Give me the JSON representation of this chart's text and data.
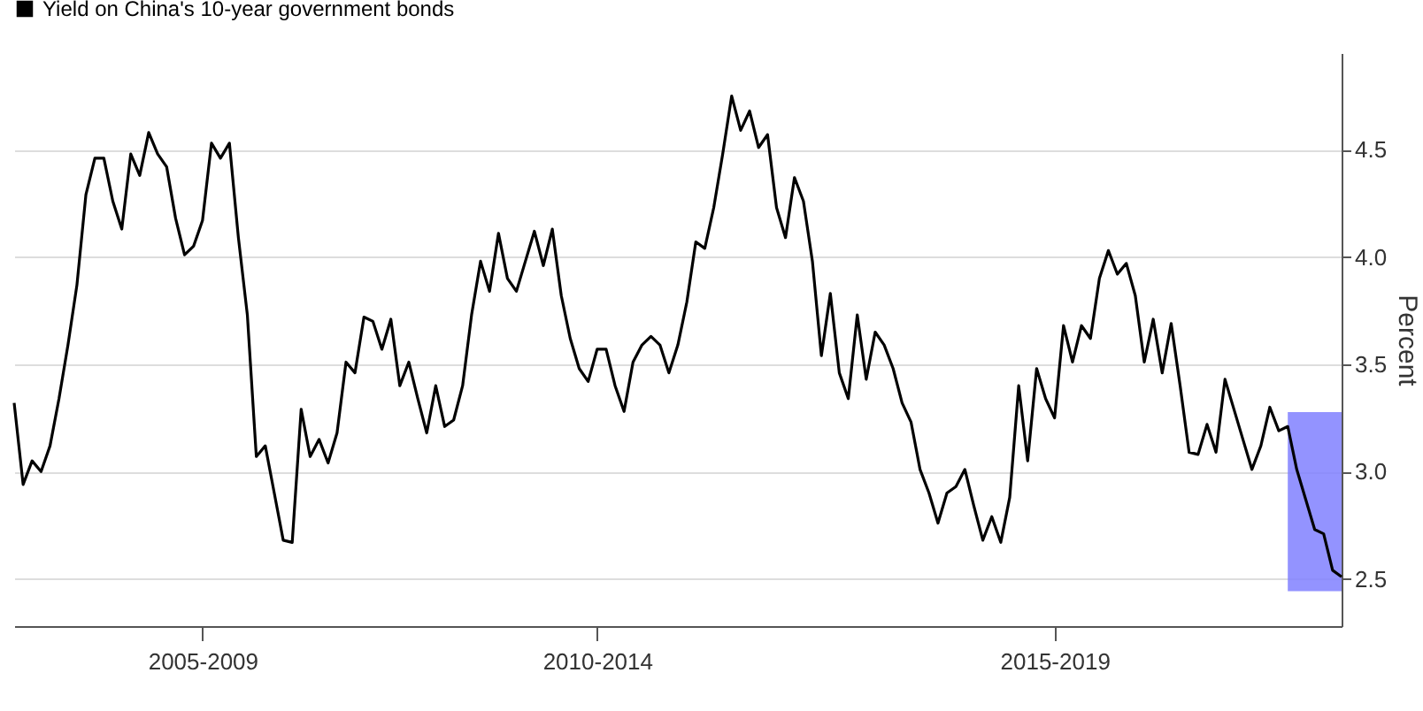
{
  "chart_data": {
    "type": "line",
    "ylabel": "Percent",
    "categories": [
      null,
      null,
      null,
      null,
      null,
      null,
      null,
      null,
      null,
      null,
      null,
      null,
      null,
      null,
      null,
      null,
      null,
      null,
      null,
      null,
      null,
      "2005-2009",
      null,
      null,
      null,
      null,
      null,
      null,
      null,
      null,
      null,
      null,
      null,
      null,
      null,
      null,
      null,
      null,
      null,
      null,
      null,
      null,
      null,
      null,
      null,
      null,
      null,
      null,
      null,
      null,
      null,
      null,
      null,
      null,
      null,
      null,
      null,
      null,
      null,
      null,
      null,
      null,
      null,
      null,
      null,
      "2010-2014",
      null,
      null,
      null,
      null,
      null,
      null,
      null,
      null,
      null,
      null,
      null,
      null,
      null,
      null,
      null,
      null,
      null,
      null,
      null,
      null,
      null,
      null,
      null,
      null,
      null,
      null,
      null,
      null,
      null,
      null,
      null,
      null,
      null,
      null,
      null,
      null,
      null,
      null,
      null,
      null,
      null,
      null,
      null,
      null,
      null,
      null,
      null,
      null,
      null,
      null,
      "2015-2019",
      null,
      null,
      null,
      null,
      null,
      null,
      null,
      null,
      null,
      null,
      null,
      null,
      null,
      null,
      null,
      null,
      null,
      null,
      null,
      null,
      null,
      null,
      null,
      null,
      null,
      null,
      null,
      null,
      null,
      null,
      null,
      null
    ],
    "ylim": [
      2.28,
      4.95
    ],
    "yticks": [
      2.5,
      {
        "value": 3,
        "label": "3.0"
      },
      3.5,
      {
        "value": 4,
        "label": "4.0"
      },
      4.5
    ],
    "grid": "y",
    "legend": "top left",
    "series": [
      {
        "name": "Yield on China's 10-year government bonds",
        "color": "#000000",
        "values": [
          3.32,
          2.94,
          3.05,
          3.0,
          3.12,
          3.34,
          3.59,
          3.87,
          4.29,
          4.46,
          4.46,
          4.26,
          4.13,
          4.48,
          4.38,
          4.58,
          4.48,
          4.42,
          4.18,
          4.01,
          4.05,
          4.17,
          4.53,
          4.46,
          4.53,
          4.09,
          3.73,
          3.07,
          3.12,
          2.9,
          2.68,
          2.67,
          3.29,
          3.07,
          3.15,
          3.04,
          3.18,
          3.51,
          3.46,
          3.72,
          3.7,
          3.57,
          3.71,
          3.4,
          3.51,
          3.34,
          3.18,
          3.4,
          3.21,
          3.24,
          3.4,
          3.73,
          3.98,
          3.84,
          4.11,
          3.9,
          3.84,
          3.98,
          4.12,
          3.96,
          4.13,
          3.82,
          3.62,
          3.48,
          3.42,
          3.57,
          3.57,
          3.4,
          3.28,
          3.51,
          3.59,
          3.63,
          3.59,
          3.46,
          3.59,
          3.79,
          4.07,
          4.04,
          4.23,
          4.48,
          4.75,
          4.59,
          4.68,
          4.51,
          4.57,
          4.23,
          4.09,
          4.37,
          4.26,
          3.98,
          3.54,
          3.83,
          3.46,
          3.34,
          3.73,
          3.43,
          3.65,
          3.59,
          3.48,
          3.32,
          3.23,
          3.01,
          2.9,
          2.76,
          2.9,
          2.93,
          3.01,
          2.84,
          2.68,
          2.79,
          2.67,
          2.88,
          3.4,
          3.05,
          3.48,
          3.34,
          3.25,
          3.68,
          3.51,
          3.68,
          3.62,
          3.9,
          4.03,
          3.92,
          3.97,
          3.82,
          3.51,
          3.71,
          3.46,
          3.69,
          3.4,
          3.09,
          3.08,
          3.22,
          3.09,
          3.43,
          3.29,
          3.15,
          3.01,
          3.12,
          3.3,
          3.19,
          3.21,
          3.01,
          2.87,
          2.73,
          2.71,
          2.54,
          2.51
        ]
      }
    ]
  }
}
